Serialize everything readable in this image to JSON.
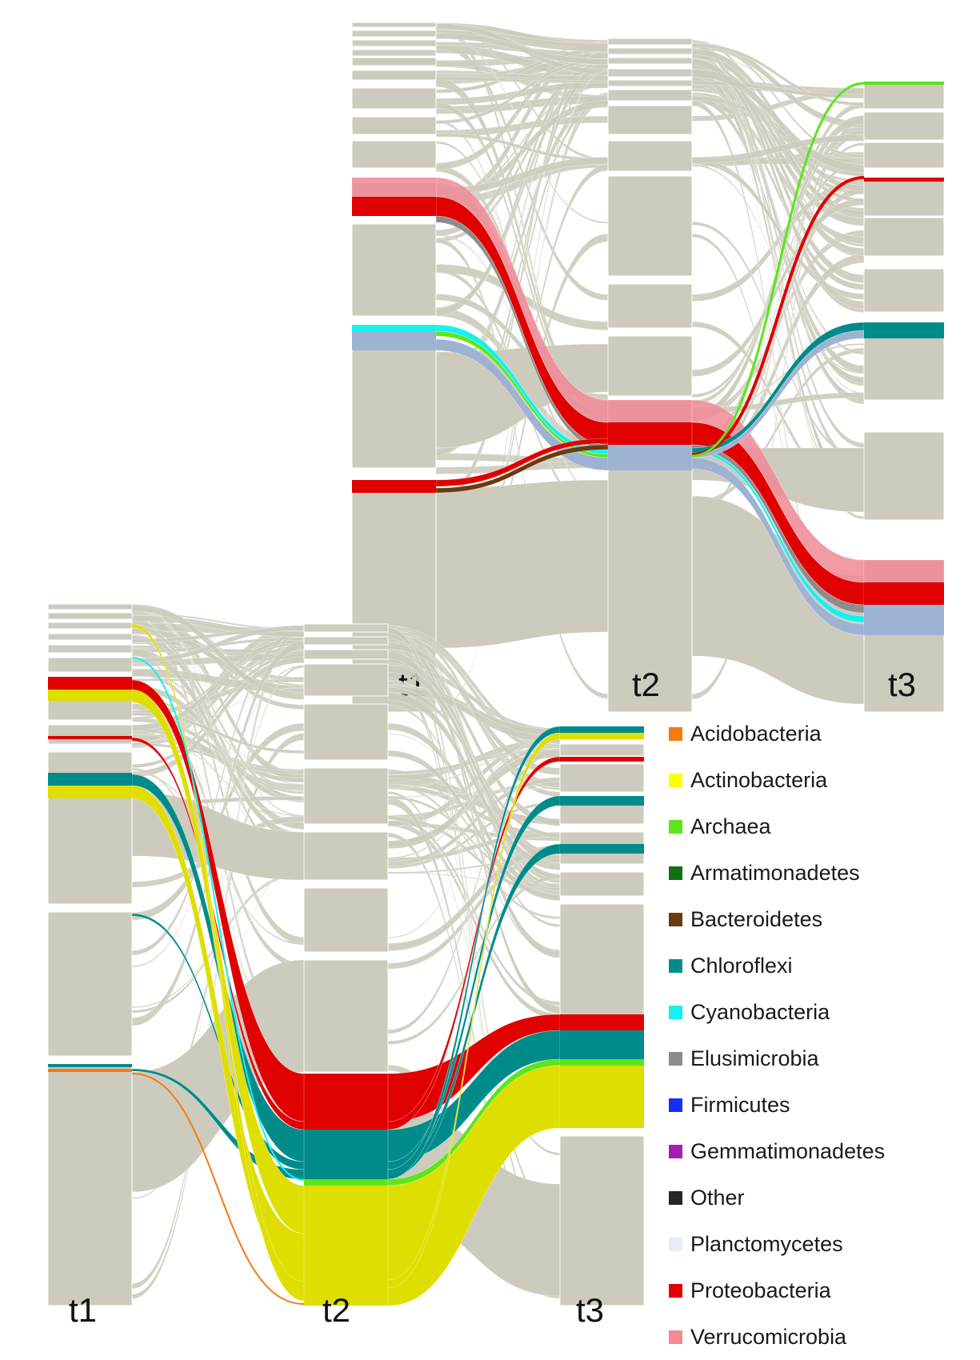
{
  "stage_labels": [
    "t1",
    "t2",
    "t3"
  ],
  "colors": {
    "background_flow": "#cccbbd",
    "node_default": "#cccbbd",
    "panel_border": "#ffffff"
  },
  "legend": [
    {
      "label": "Acidobacteria",
      "color": "#f47a12"
    },
    {
      "label": "Actinobacteria",
      "color": "#ffff00"
    },
    {
      "label": "Archaea",
      "color": "#5ce61a"
    },
    {
      "label": "Armatimonadetes",
      "color": "#137013"
    },
    {
      "label": "Bacteroidetes",
      "color": "#6b3a10"
    },
    {
      "label": "Chloroflexi",
      "color": "#008b8b"
    },
    {
      "label": "Cyanobacteria",
      "color": "#16f0f0"
    },
    {
      "label": "Elusimicrobia",
      "color": "#8c8c8c"
    },
    {
      "label": "Firmicutes",
      "color": "#1430f5"
    },
    {
      "label": "Gemmatimonadetes",
      "color": "#a21fb2"
    },
    {
      "label": "Other",
      "color": "#262626"
    },
    {
      "label": "Planctomycetes",
      "color": "#e8eef8"
    },
    {
      "label": "Proteobacteria",
      "color": "#e00000"
    },
    {
      "label": "Verrucomicrobia",
      "color": "#f08a96"
    }
  ],
  "panels": [
    {
      "name": "back-panel",
      "stages": [
        "t1",
        "t2",
        "t3"
      ]
    },
    {
      "name": "front-panel",
      "stages": [
        "t1",
        "t2",
        "t3"
      ]
    }
  ]
}
